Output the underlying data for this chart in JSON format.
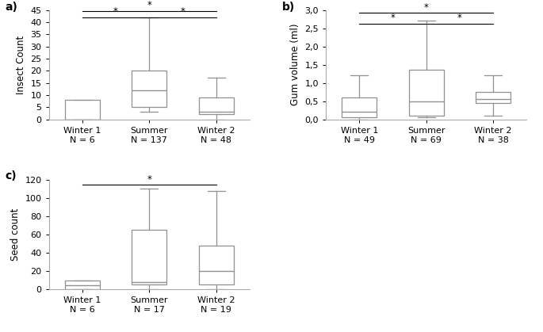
{
  "panel_a": {
    "label": "a)",
    "ylabel": "Insect Count",
    "ylim": [
      0,
      45
    ],
    "yticks": [
      0,
      5,
      10,
      15,
      20,
      25,
      30,
      35,
      40,
      45
    ],
    "yticklabels": [
      "0",
      "5",
      "10",
      "15",
      "20",
      "25",
      "30",
      "35",
      "40",
      "45"
    ],
    "categories": [
      "Winter 1\nN = 6",
      "Summer\nN = 137",
      "Winter 2\nN = 48"
    ],
    "boxes": [
      {
        "whislo": 0,
        "q1": 0,
        "med": 0,
        "q3": 8,
        "whishi": 8
      },
      {
        "whislo": 3,
        "q1": 5,
        "med": 12,
        "q3": 20,
        "whishi": 42
      },
      {
        "whislo": 0,
        "q1": 2,
        "med": 3,
        "q3": 9,
        "whishi": 17
      }
    ],
    "sig_lines": [
      [
        0,
        1,
        42,
        "*"
      ],
      [
        0,
        2,
        44.5,
        "*"
      ],
      [
        1,
        2,
        42,
        "*"
      ]
    ]
  },
  "panel_b": {
    "label": "b)",
    "ylabel": "Gum volume (ml)",
    "ylim": [
      0,
      3.0
    ],
    "yticks": [
      0.0,
      0.5,
      1.0,
      1.5,
      2.0,
      2.5,
      3.0
    ],
    "yticklabels": [
      "0,0",
      "0,5",
      "1,0",
      "1,5",
      "2,0",
      "2,5",
      "3,0"
    ],
    "categories": [
      "Winter 1\nN = 49",
      "Summer\nN = 69",
      "Winter 2\nN = 38"
    ],
    "boxes": [
      {
        "whislo": 0.0,
        "q1": 0.05,
        "med": 0.2,
        "q3": 0.6,
        "whishi": 1.2
      },
      {
        "whislo": 0.05,
        "q1": 0.1,
        "med": 0.5,
        "q3": 1.35,
        "whishi": 2.7
      },
      {
        "whislo": 0.1,
        "q1": 0.45,
        "med": 0.55,
        "q3": 0.75,
        "whishi": 1.2
      }
    ],
    "sig_lines": [
      [
        0,
        1,
        2.62,
        "*"
      ],
      [
        0,
        2,
        2.92,
        "*"
      ],
      [
        1,
        2,
        2.62,
        "*"
      ]
    ]
  },
  "panel_c": {
    "label": "c)",
    "ylabel": "Seed count",
    "ylim": [
      0,
      120
    ],
    "yticks": [
      0,
      20,
      40,
      60,
      80,
      100,
      120
    ],
    "yticklabels": [
      "0",
      "20",
      "40",
      "60",
      "80",
      "100",
      "120"
    ],
    "categories": [
      "Winter 1\nN = 6",
      "Summer\nN = 17",
      "Winter 2\nN = 19"
    ],
    "boxes": [
      {
        "whislo": 0,
        "q1": 0,
        "med": 4,
        "q3": 9,
        "whishi": 9
      },
      {
        "whislo": 0,
        "q1": 5,
        "med": 7,
        "q3": 65,
        "whishi": 110
      },
      {
        "whislo": 0,
        "q1": 5,
        "med": 20,
        "q3": 47,
        "whishi": 107
      }
    ],
    "sig_lines": [
      [
        0,
        2,
        114,
        "*"
      ]
    ]
  },
  "box_facecolor": "white",
  "box_edgecolor": "#909090",
  "median_color": "#909090",
  "whisker_color": "#909090",
  "fontsize": 8.5,
  "tick_fontsize": 8,
  "label_fontsize": 10
}
